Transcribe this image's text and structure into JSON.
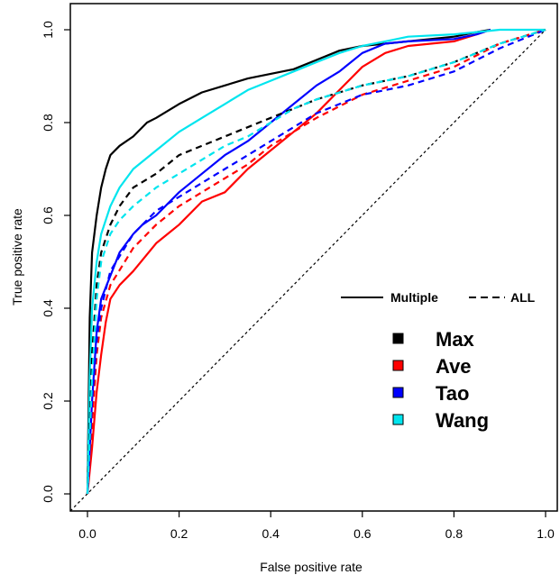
{
  "chart_data": {
    "type": "line",
    "xlabel": "False positive rate",
    "ylabel": "True positive rate",
    "xlim": [
      0,
      1
    ],
    "ylim": [
      0,
      1
    ],
    "x_ticks": [
      "0.0",
      "0.2",
      "0.4",
      "0.6",
      "0.8",
      "1.0"
    ],
    "y_ticks": [
      "0.0",
      "0.2",
      "0.4",
      "0.6",
      "0.8",
      "1.0"
    ],
    "grid": false,
    "legend_placement": "right",
    "line_style_legend": [
      {
        "label": "Multiple",
        "dash": "solid"
      },
      {
        "label": "ALL",
        "dash": "dashed"
      }
    ],
    "method_legend": [
      {
        "label": "Max",
        "color": "#000000"
      },
      {
        "label": "Ave",
        "color": "#ff0000"
      },
      {
        "label": "Tao",
        "color": "#0000ff"
      },
      {
        "label": "Wang",
        "color": "#00e5ee"
      }
    ],
    "reference_line": {
      "x": [
        0,
        1
      ],
      "y": [
        0,
        1
      ],
      "color": "#000000",
      "dash": "dotted"
    },
    "series": [
      {
        "name": "Max",
        "style": "solid",
        "color": "#000000",
        "x": [
          0,
          0.005,
          0.01,
          0.02,
          0.03,
          0.04,
          0.05,
          0.07,
          0.1,
          0.13,
          0.15,
          0.2,
          0.25,
          0.3,
          0.35,
          0.4,
          0.45,
          0.5,
          0.55,
          0.6,
          0.7,
          0.8,
          0.85,
          0.88
        ],
        "y": [
          0,
          0.38,
          0.52,
          0.6,
          0.66,
          0.7,
          0.73,
          0.75,
          0.77,
          0.8,
          0.81,
          0.84,
          0.865,
          0.88,
          0.895,
          0.905,
          0.915,
          0.935,
          0.955,
          0.965,
          0.975,
          0.985,
          0.995,
          1.0
        ]
      },
      {
        "name": "Ave",
        "style": "solid",
        "color": "#ff0000",
        "x": [
          0,
          0.01,
          0.02,
          0.03,
          0.04,
          0.05,
          0.07,
          0.1,
          0.15,
          0.2,
          0.25,
          0.3,
          0.35,
          0.4,
          0.45,
          0.5,
          0.55,
          0.6,
          0.65,
          0.7,
          0.8,
          0.85,
          0.88
        ],
        "y": [
          0,
          0.1,
          0.22,
          0.3,
          0.37,
          0.42,
          0.45,
          0.48,
          0.54,
          0.58,
          0.63,
          0.65,
          0.7,
          0.74,
          0.78,
          0.82,
          0.87,
          0.92,
          0.95,
          0.965,
          0.975,
          0.99,
          1.0
        ]
      },
      {
        "name": "Tao",
        "style": "solid",
        "color": "#0000ff",
        "x": [
          0,
          0.01,
          0.02,
          0.03,
          0.05,
          0.07,
          0.1,
          0.12,
          0.15,
          0.2,
          0.25,
          0.3,
          0.35,
          0.4,
          0.45,
          0.5,
          0.55,
          0.6,
          0.65,
          0.7,
          0.8,
          0.85,
          0.88
        ],
        "y": [
          0,
          0.2,
          0.35,
          0.42,
          0.47,
          0.52,
          0.56,
          0.58,
          0.6,
          0.65,
          0.69,
          0.73,
          0.76,
          0.8,
          0.84,
          0.88,
          0.91,
          0.95,
          0.97,
          0.975,
          0.98,
          0.99,
          1.0
        ]
      },
      {
        "name": "Wang",
        "style": "solid",
        "color": "#00e5ee",
        "x": [
          0,
          0.005,
          0.01,
          0.02,
          0.03,
          0.05,
          0.07,
          0.1,
          0.15,
          0.2,
          0.25,
          0.3,
          0.35,
          0.4,
          0.45,
          0.5,
          0.55,
          0.6,
          0.65,
          0.7,
          0.8,
          0.85,
          0.9,
          1.0
        ],
        "y": [
          0,
          0.25,
          0.4,
          0.5,
          0.56,
          0.62,
          0.66,
          0.7,
          0.74,
          0.78,
          0.81,
          0.84,
          0.87,
          0.89,
          0.91,
          0.93,
          0.95,
          0.965,
          0.975,
          0.985,
          0.99,
          0.995,
          1.0,
          1.0
        ]
      },
      {
        "name": "Max",
        "style": "dashed",
        "color": "#000000",
        "x": [
          0,
          0.01,
          0.02,
          0.03,
          0.05,
          0.07,
          0.1,
          0.15,
          0.2,
          0.3,
          0.4,
          0.5,
          0.6,
          0.7,
          0.8,
          0.9,
          1.0
        ],
        "y": [
          0,
          0.3,
          0.45,
          0.52,
          0.58,
          0.62,
          0.66,
          0.69,
          0.73,
          0.77,
          0.81,
          0.85,
          0.88,
          0.9,
          0.93,
          0.97,
          1.0
        ]
      },
      {
        "name": "Ave",
        "style": "dashed",
        "color": "#ff0000",
        "x": [
          0,
          0.01,
          0.02,
          0.03,
          0.05,
          0.1,
          0.15,
          0.2,
          0.25,
          0.3,
          0.35,
          0.4,
          0.45,
          0.5,
          0.6,
          0.7,
          0.8,
          0.9,
          1.0
        ],
        "y": [
          0,
          0.15,
          0.3,
          0.38,
          0.45,
          0.53,
          0.58,
          0.62,
          0.65,
          0.68,
          0.71,
          0.75,
          0.78,
          0.81,
          0.86,
          0.89,
          0.92,
          0.97,
          1.0
        ]
      },
      {
        "name": "Tao",
        "style": "dashed",
        "color": "#0000ff",
        "x": [
          0,
          0.01,
          0.02,
          0.03,
          0.05,
          0.1,
          0.15,
          0.2,
          0.25,
          0.3,
          0.35,
          0.4,
          0.45,
          0.5,
          0.6,
          0.7,
          0.8,
          0.9,
          1.0
        ],
        "y": [
          0,
          0.2,
          0.33,
          0.4,
          0.48,
          0.56,
          0.61,
          0.64,
          0.67,
          0.7,
          0.73,
          0.76,
          0.79,
          0.82,
          0.86,
          0.88,
          0.91,
          0.96,
          1.0
        ]
      },
      {
        "name": "Wang",
        "style": "dashed",
        "color": "#00e5ee",
        "x": [
          0,
          0.01,
          0.02,
          0.03,
          0.05,
          0.07,
          0.1,
          0.15,
          0.2,
          0.25,
          0.3,
          0.35,
          0.4,
          0.45,
          0.5,
          0.6,
          0.7,
          0.8,
          0.9,
          1.0
        ],
        "y": [
          0,
          0.25,
          0.42,
          0.5,
          0.56,
          0.59,
          0.62,
          0.66,
          0.69,
          0.72,
          0.75,
          0.77,
          0.8,
          0.83,
          0.85,
          0.88,
          0.9,
          0.93,
          0.97,
          1.0
        ]
      }
    ]
  }
}
